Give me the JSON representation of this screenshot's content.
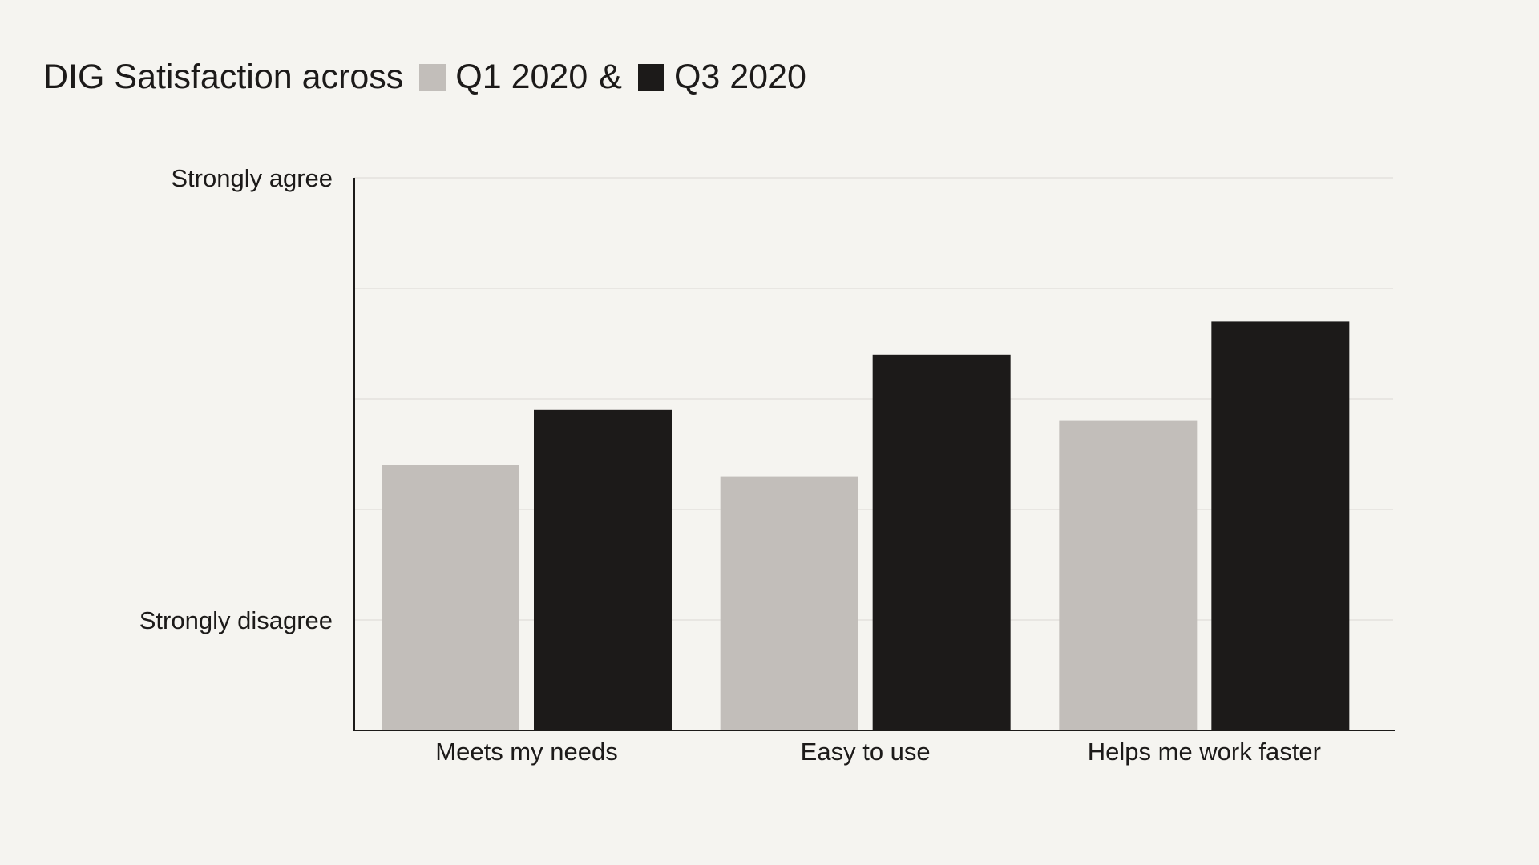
{
  "title": {
    "prefix": "DIG Satisfaction across",
    "connector": "&"
  },
  "colors": {
    "background": "#f5f4f0",
    "q1": "#c2beba",
    "q3": "#1c1a19",
    "grid": "#e4e2dd",
    "axis": "#1c1a19",
    "text": "#1c1a19"
  },
  "chart_data": {
    "type": "bar",
    "categories": [
      "Meets my needs",
      "Easy to use",
      "Helps me work faster"
    ],
    "series": [
      {
        "name": "Q1 2020",
        "color": "#c2beba",
        "values": [
          2.4,
          2.3,
          2.8
        ]
      },
      {
        "name": "Q3 2020",
        "color": "#1c1a19",
        "values": [
          2.9,
          3.4,
          3.7
        ]
      }
    ],
    "ylim": [
      0,
      5
    ],
    "y_tick_labels": [
      {
        "value": 1,
        "label": "Strongly disagree"
      },
      {
        "value": 5,
        "label": "Strongly agree"
      }
    ],
    "gridlines": [
      1,
      2,
      3,
      4,
      5
    ],
    "grid": true,
    "legend": "inline-title",
    "xlabel": "",
    "ylabel": ""
  }
}
